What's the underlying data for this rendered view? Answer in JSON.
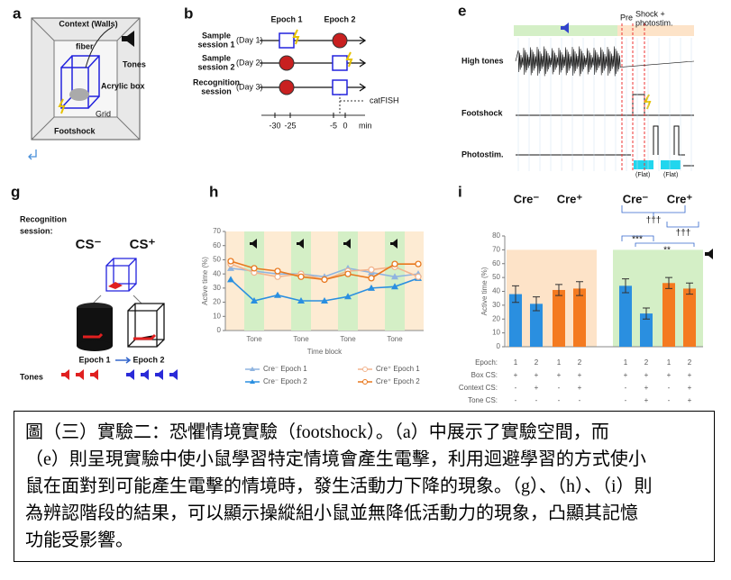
{
  "figure": {
    "panels": {
      "a": {
        "label": "a",
        "context": "Context (Walls)",
        "fiber": "fiber",
        "tones": "Tones",
        "acrylic": "Acrylic box",
        "grid": "Grid",
        "footshock": "Footshock"
      },
      "b": {
        "label": "b",
        "epoch1": "Epoch 1",
        "epoch2": "Epoch 2",
        "rows": [
          {
            "name": [
              "Sample",
              "session 1"
            ],
            "day": "(Day 1)"
          },
          {
            "name": [
              "Sample",
              "session 2"
            ],
            "day": "(Day 2)"
          },
          {
            "name": [
              "Recognition",
              "session"
            ],
            "day": "(Day 3)"
          }
        ],
        "catfish": "catFISH",
        "times": [
          "-30",
          "-25",
          "-5",
          "0"
        ],
        "unit": "min"
      },
      "e": {
        "label": "e",
        "pre": "Pre",
        "shock": [
          "Shock +",
          "photostim."
        ],
        "rows": [
          "High tones",
          "Footshock",
          "Photostim."
        ],
        "flat": [
          "(Flat)",
          "(Flat)"
        ]
      },
      "g": {
        "label": "g",
        "session": [
          "Recognition",
          "session:"
        ],
        "cs_minus": "CS⁻",
        "cs_plus": "CS⁺",
        "epoch1": "Epoch 1",
        "epoch2": "Epoch 2",
        "tones": "Tones"
      }
    }
  },
  "chart_data": [
    {
      "type": "line",
      "panel_label": "h",
      "ylabel": "Active time (%)",
      "xlabel": "Time block",
      "categories": [
        null,
        "Tone",
        null,
        "Tone",
        null,
        "Tone",
        null,
        "Tone",
        null
      ],
      "ylim": [
        0,
        70
      ],
      "yticks": [
        0,
        10,
        20,
        30,
        40,
        50,
        60,
        70
      ],
      "series": [
        {
          "name": "Cre⁻ Epoch 1",
          "color": "#8fb4e0",
          "marker": "triangle",
          "values": [
            44,
            42,
            40,
            40,
            38,
            44,
            41,
            38,
            40
          ]
        },
        {
          "name": "Cre⁻ Epoch 2",
          "color": "#2a8fe0",
          "marker": "triangle",
          "values": [
            36,
            21,
            25,
            21,
            21,
            24,
            30,
            31,
            37
          ]
        },
        {
          "name": "Cre⁺ Epoch 1",
          "color": "#f2b48e",
          "marker": "circle",
          "values": [
            47,
            41,
            38,
            40,
            36,
            42,
            43,
            45,
            38
          ]
        },
        {
          "name": "Cre⁺ Epoch 2",
          "color": "#e8781e",
          "marker": "circle",
          "values": [
            49,
            44,
            42,
            38,
            36,
            40,
            37,
            47,
            47
          ]
        }
      ]
    },
    {
      "type": "bar",
      "panel_label": "i",
      "ylabel": "Active time (%)",
      "xlabel": "Epoch:",
      "group_labels": [
        "Cre⁻",
        "Cre⁺",
        "Cre⁻",
        "Cre⁺"
      ],
      "categories": [
        "1",
        "2",
        "1",
        "2",
        "1",
        "2",
        "1",
        "2"
      ],
      "values": [
        38,
        31,
        41,
        42,
        44,
        24,
        46,
        42
      ],
      "errors": [
        6,
        5,
        4,
        5,
        5,
        4,
        4,
        4
      ],
      "colors": [
        "#2a8fe0",
        "#2a8fe0",
        "#f47a20",
        "#f47a20",
        "#2a8fe0",
        "#2a8fe0",
        "#f47a20",
        "#f47a20"
      ],
      "ylim": [
        0,
        80
      ],
      "yticks": [
        0,
        10,
        20,
        30,
        40,
        50,
        60,
        70,
        80
      ],
      "annotations": [
        "†††",
        "†††",
        "***",
        "**"
      ],
      "design_rows": [
        {
          "label": "Box CS:",
          "cells": [
            "+",
            "+",
            "+",
            "+",
            "+",
            "+",
            "+",
            "+"
          ]
        },
        {
          "label": "Context CS:",
          "cells": [
            "-",
            "+",
            "-",
            "+",
            "-",
            "+",
            "-",
            "+"
          ]
        },
        {
          "label": "Tone CS:",
          "cells": [
            "-",
            "-",
            "-",
            "-",
            "-",
            "+",
            "-",
            "+"
          ]
        }
      ]
    }
  ],
  "caption": {
    "lines": [
      "圖（三）實驗二：恐懼情境實驗（footshock）。（a）中展示了實驗空間，而",
      "（e）則呈現實驗中使小鼠學習特定情境會產生電擊，利用迴避學習的方式使小",
      "鼠在面對到可能產生電擊的情境時，發生活動力下降的現象。（g）、（h）、（i）則",
      "為辨認階段的結果，可以顯示操縱組小鼠並無降低活動力的現象，凸顯其記憶",
      "功能受影響。"
    ]
  }
}
